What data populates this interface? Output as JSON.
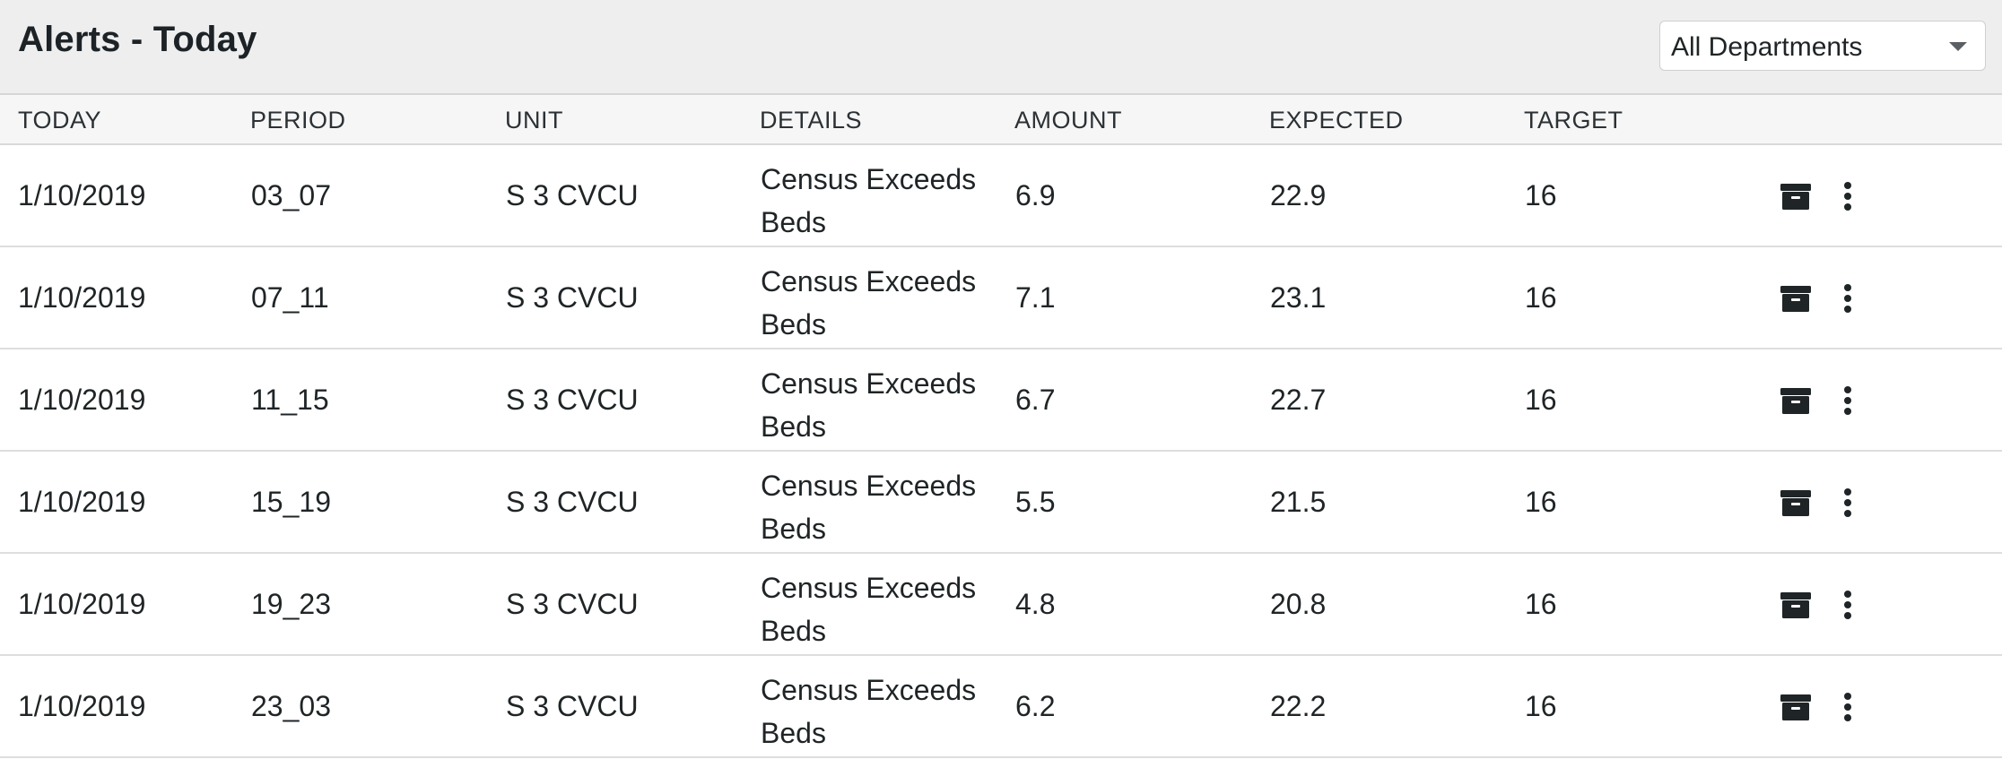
{
  "header": {
    "title": "Alerts - Today",
    "department_select": {
      "value": "All Departments"
    }
  },
  "table": {
    "columns": [
      "TODAY",
      "PERIOD",
      "UNIT",
      "DETAILS",
      "AMOUNT",
      "EXPECTED",
      "TARGET"
    ],
    "rows": [
      {
        "today": "1/10/2019",
        "period": "03_07",
        "unit": "S 3 CVCU",
        "details": "Census Exceeds Beds",
        "amount": "6.9",
        "expected": "22.9",
        "target": "16"
      },
      {
        "today": "1/10/2019",
        "period": "07_11",
        "unit": "S 3 CVCU",
        "details": "Census Exceeds Beds",
        "amount": "7.1",
        "expected": "23.1",
        "target": "16"
      },
      {
        "today": "1/10/2019",
        "period": "11_15",
        "unit": "S 3 CVCU",
        "details": "Census Exceeds Beds",
        "amount": "6.7",
        "expected": "22.7",
        "target": "16"
      },
      {
        "today": "1/10/2019",
        "period": "15_19",
        "unit": "S 3 CVCU",
        "details": "Census Exceeds Beds",
        "amount": "5.5",
        "expected": "21.5",
        "target": "16"
      },
      {
        "today": "1/10/2019",
        "period": "19_23",
        "unit": "S 3 CVCU",
        "details": "Census Exceeds Beds",
        "amount": "4.8",
        "expected": "20.8",
        "target": "16"
      },
      {
        "today": "1/10/2019",
        "period": "23_03",
        "unit": "S 3 CVCU",
        "details": "Census Exceeds Beds",
        "amount": "6.2",
        "expected": "22.2",
        "target": "16"
      }
    ],
    "row_actions": [
      {
        "icon": "archive-icon"
      },
      {
        "icon": "more-vertical-icon"
      }
    ]
  },
  "colors": {
    "header_bg": "#eeeeee",
    "table_header_bg": "#f6f6f6",
    "text": "#1f2426",
    "icon": "#1f2426",
    "divider": "#dedede"
  }
}
